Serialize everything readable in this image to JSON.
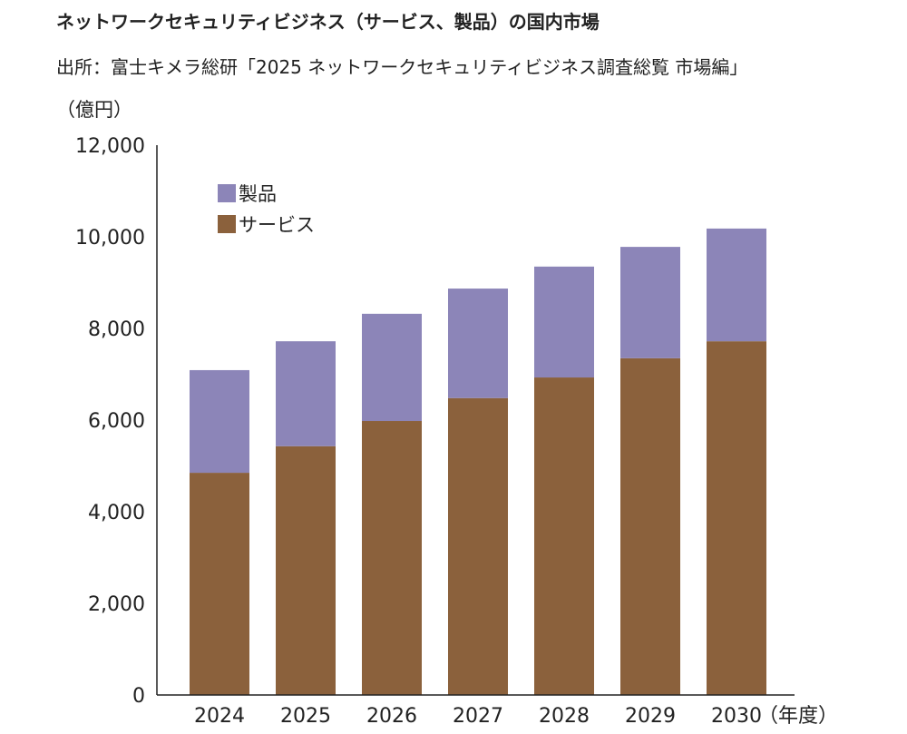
{
  "chart_data": {
    "type": "bar",
    "stacked": true,
    "title": "ネットワークセキュリティビジネス（サービス、製品）の国内市場",
    "subtitle": "出所：富士キメラ総研「2025 ネットワークセキュリティビジネス調査総覧 市場編」",
    "ylabel": "（億円）",
    "xlabel": "（年度）",
    "ylim": [
      0,
      12000
    ],
    "yticks": [
      0,
      2000,
      4000,
      6000,
      8000,
      10000,
      12000
    ],
    "ytick_labels": [
      "0",
      "2,000",
      "4,000",
      "6,000",
      "8,000",
      "10,000",
      "12,000"
    ],
    "categories": [
      "2024",
      "2025",
      "2026",
      "2027",
      "2028",
      "2029",
      "2030"
    ],
    "series": [
      {
        "name": "サービス",
        "color": "#8b613c",
        "values": [
          4850,
          5430,
          5980,
          6480,
          6930,
          7350,
          7720
        ]
      },
      {
        "name": "製品",
        "color": "#8c85b8",
        "values": [
          2240,
          2290,
          2340,
          2390,
          2420,
          2430,
          2460
        ]
      }
    ],
    "legend": {
      "placement": "top-left",
      "order": [
        "製品",
        "サービス"
      ]
    },
    "grid": false
  }
}
